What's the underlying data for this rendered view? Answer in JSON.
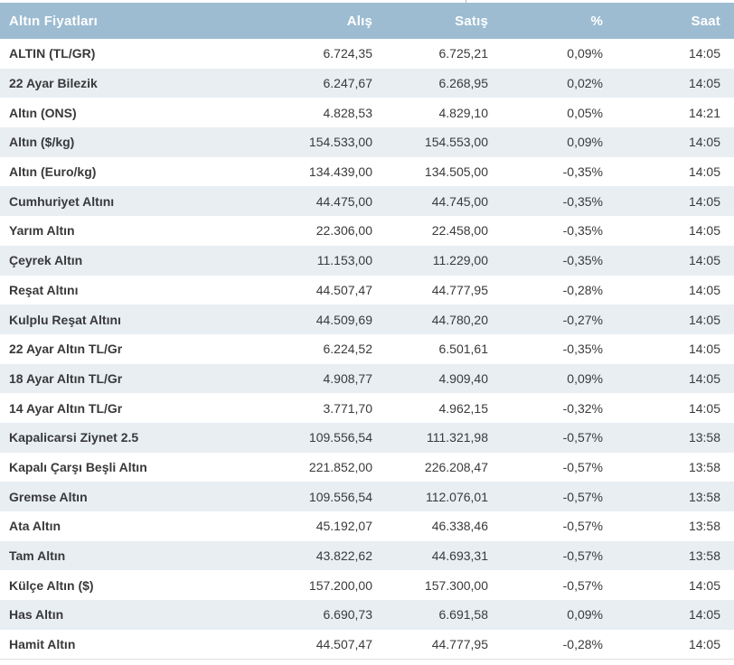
{
  "colors": {
    "header_bg": "#9dbcd1",
    "header_text": "#ffffff",
    "stripe_bg": "#e8eef2",
    "row_bg": "#ffffff",
    "text": "#3a3a3c",
    "bottom_border": "#e2dedd"
  },
  "table": {
    "title": "Altın Fiyatları",
    "columns": [
      "Alış",
      "Satış",
      "%",
      "Saat"
    ],
    "rows": [
      {
        "name": "ALTIN (TL/GR)",
        "alis": "6.724,35",
        "satis": "6.725,21",
        "pct": "0,09%",
        "saat": "14:05"
      },
      {
        "name": "22 Ayar Bilezik",
        "alis": "6.247,67",
        "satis": "6.268,95",
        "pct": "0,02%",
        "saat": "14:05"
      },
      {
        "name": "Altın (ONS)",
        "alis": "4.828,53",
        "satis": "4.829,10",
        "pct": "0,05%",
        "saat": "14:21"
      },
      {
        "name": "Altın ($/kg)",
        "alis": "154.533,00",
        "satis": "154.553,00",
        "pct": "0,09%",
        "saat": "14:05"
      },
      {
        "name": "Altın (Euro/kg)",
        "alis": "134.439,00",
        "satis": "134.505,00",
        "pct": "-0,35%",
        "saat": "14:05"
      },
      {
        "name": "Cumhuriyet Altını",
        "alis": "44.475,00",
        "satis": "44.745,00",
        "pct": "-0,35%",
        "saat": "14:05"
      },
      {
        "name": "Yarım Altın",
        "alis": "22.306,00",
        "satis": "22.458,00",
        "pct": "-0,35%",
        "saat": "14:05"
      },
      {
        "name": "Çeyrek Altın",
        "alis": "11.153,00",
        "satis": "11.229,00",
        "pct": "-0,35%",
        "saat": "14:05"
      },
      {
        "name": "Reşat Altını",
        "alis": "44.507,47",
        "satis": "44.777,95",
        "pct": "-0,28%",
        "saat": "14:05"
      },
      {
        "name": "Kulplu Reşat Altını",
        "alis": "44.509,69",
        "satis": "44.780,20",
        "pct": "-0,27%",
        "saat": "14:05"
      },
      {
        "name": "22 Ayar Altın TL/Gr",
        "alis": "6.224,52",
        "satis": "6.501,61",
        "pct": "-0,35%",
        "saat": "14:05"
      },
      {
        "name": "18 Ayar Altın TL/Gr",
        "alis": "4.908,77",
        "satis": "4.909,40",
        "pct": "0,09%",
        "saat": "14:05"
      },
      {
        "name": "14 Ayar Altın TL/Gr",
        "alis": "3.771,70",
        "satis": "4.962,15",
        "pct": "-0,32%",
        "saat": "14:05"
      },
      {
        "name": "Kapalicarsi Ziynet 2.5",
        "alis": "109.556,54",
        "satis": "111.321,98",
        "pct": "-0,57%",
        "saat": "13:58"
      },
      {
        "name": "Kapalı Çarşı Beşli Altın",
        "alis": "221.852,00",
        "satis": "226.208,47",
        "pct": "-0,57%",
        "saat": "13:58"
      },
      {
        "name": "Gremse Altın",
        "alis": "109.556,54",
        "satis": "112.076,01",
        "pct": "-0,57%",
        "saat": "13:58"
      },
      {
        "name": "Ata Altın",
        "alis": "45.192,07",
        "satis": "46.338,46",
        "pct": "-0,57%",
        "saat": "13:58"
      },
      {
        "name": "Tam Altın",
        "alis": "43.822,62",
        "satis": "44.693,31",
        "pct": "-0,57%",
        "saat": "13:58"
      },
      {
        "name": "Külçe Altın ($)",
        "alis": "157.200,00",
        "satis": "157.300,00",
        "pct": "-0,57%",
        "saat": "14:05"
      },
      {
        "name": "Has Altın",
        "alis": "6.690,73",
        "satis": "6.691,58",
        "pct": "0,09%",
        "saat": "14:05"
      },
      {
        "name": "Hamit Altın",
        "alis": "44.507,47",
        "satis": "44.777,95",
        "pct": "-0,28%",
        "saat": "14:05"
      }
    ]
  }
}
